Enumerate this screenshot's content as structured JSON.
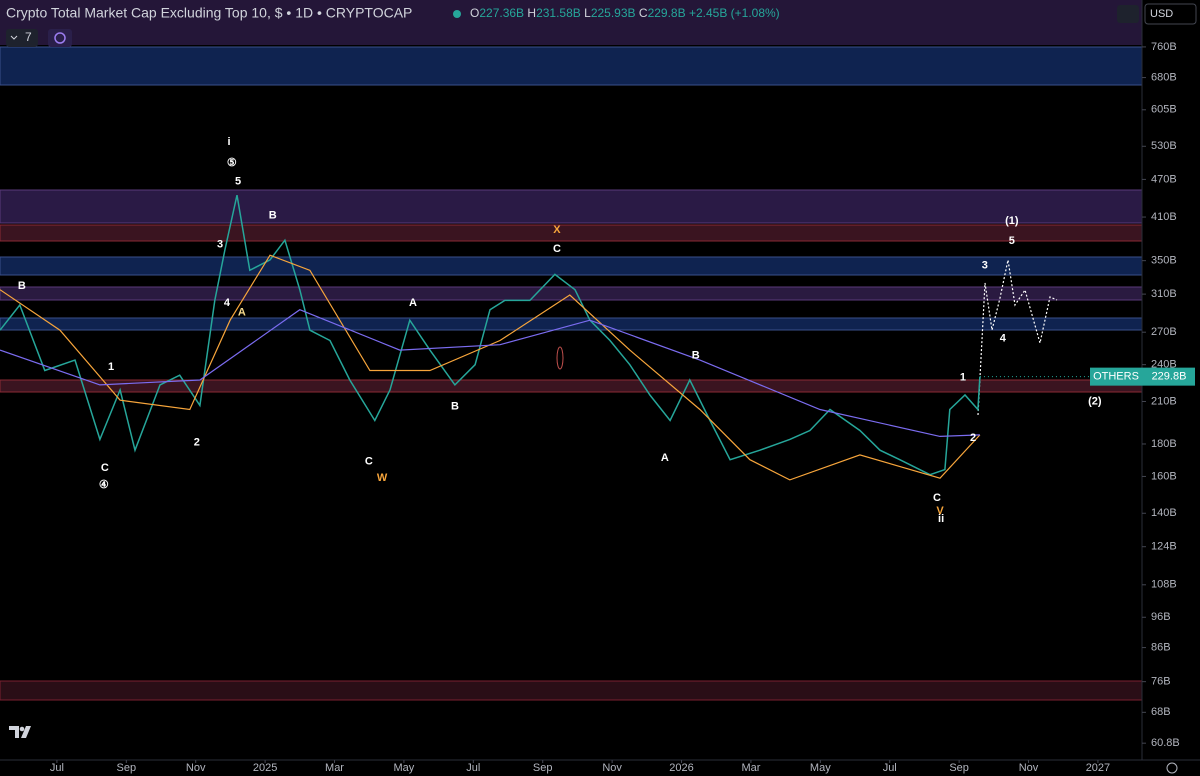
{
  "header": {
    "title": "Crypto Total Market Cap Excluding Top 10, $ • 1D • CRYPTOCAP",
    "ohlc": [
      {
        "label": "O",
        "value": "227.36B"
      },
      {
        "label": "H",
        "value": "231.58B"
      },
      {
        "label": "L",
        "value": "225.93B"
      },
      {
        "label": "C",
        "value": "229.8B"
      }
    ],
    "change": "+2.45B (+1.08%)",
    "indicators": "7",
    "currency": "USD"
  },
  "chart_data": {
    "type": "line",
    "log_scale": true,
    "xlim": [
      -1.64,
      31.27
    ],
    "ylim": [
      57.2,
      901
    ],
    "xticks": [
      {
        "value": 0,
        "label": "Jul"
      },
      {
        "value": 2,
        "label": "Sep"
      },
      {
        "value": 4,
        "label": "Nov"
      },
      {
        "value": 6,
        "label": "2025"
      },
      {
        "value": 8,
        "label": "Mar"
      },
      {
        "value": 10,
        "label": "May"
      },
      {
        "value": 12,
        "label": "Jul"
      },
      {
        "value": 14,
        "label": "Sep"
      },
      {
        "value": 16,
        "label": "Nov"
      },
      {
        "value": 18,
        "label": "2026"
      },
      {
        "value": 20,
        "label": "Mar"
      },
      {
        "value": 22,
        "label": "May"
      },
      {
        "value": 24,
        "label": "Jul"
      },
      {
        "value": 26,
        "label": "Sep"
      },
      {
        "value": 28,
        "label": "Nov"
      },
      {
        "value": 30,
        "label": "2027"
      }
    ],
    "yticks": [
      {
        "value": 760,
        "label": "760B"
      },
      {
        "value": 680,
        "label": "680B"
      },
      {
        "value": 605,
        "label": "605B"
      },
      {
        "value": 530,
        "label": "530B"
      },
      {
        "value": 470,
        "label": "470B"
      },
      {
        "value": 410,
        "label": "410B"
      },
      {
        "value": 350,
        "label": "350B"
      },
      {
        "value": 310,
        "label": "310B"
      },
      {
        "value": 270,
        "label": "270B"
      },
      {
        "value": 240,
        "label": "240B"
      },
      {
        "value": 210,
        "label": "210B"
      },
      {
        "value": 180,
        "label": "180B"
      },
      {
        "value": 160,
        "label": "160B"
      },
      {
        "value": 140,
        "label": "140B"
      },
      {
        "value": 124,
        "label": "124B"
      },
      {
        "value": 108,
        "label": "108B"
      },
      {
        "value": 96,
        "label": "96B"
      },
      {
        "value": 86,
        "label": "86B"
      },
      {
        "value": 76,
        "label": "76B"
      },
      {
        "value": 68,
        "label": "68B"
      },
      {
        "value": 60.8,
        "label": "60.8B"
      }
    ],
    "series": [
      {
        "color": "#26a69a",
        "x": [
          -1.64,
          -1.07,
          -0.35,
          0.52,
          1.24,
          1.82,
          2.25,
          2.97,
          3.54,
          4.12,
          4.55,
          4.84,
          5.19,
          5.56,
          6.14,
          6.57,
          7.0,
          7.29,
          7.87,
          8.44,
          9.16,
          9.6,
          10.17,
          10.75,
          11.47,
          12.05,
          12.48,
          12.91,
          13.63,
          14.35,
          14.93,
          15.36,
          15.94,
          16.51,
          17.09,
          17.67,
          18.24,
          18.82,
          19.4,
          20.26,
          21.12,
          21.7,
          22.28,
          23.14,
          23.72,
          24.29,
          25.16,
          25.59,
          25.73,
          26.17,
          26.54,
          26.6
        ],
        "values": [
          272,
          298,
          235,
          244,
          183,
          219,
          176,
          223,
          231,
          207,
          303,
          364,
          444,
          338,
          351,
          377,
          315,
          272,
          262,
          227,
          196,
          219,
          282,
          253,
          223,
          240,
          293,
          303,
          303,
          333,
          315,
          282,
          262,
          240,
          215,
          196,
          227,
          196,
          170,
          176,
          183,
          189,
          204,
          189,
          176,
          170,
          161,
          164,
          204,
          215,
          204,
          229.8
        ]
      },
      {
        "color": "#f7a53b",
        "x": [
          -1.64,
          0.09,
          1.82,
          3.83,
          4.99,
          6.14,
          7.29,
          9.02,
          10.75,
          12.77,
          14.78,
          16.51,
          18.53,
          19.97,
          21.12,
          23.14,
          25.45,
          26.6
        ],
        "values": [
          315,
          272,
          211,
          204,
          282,
          357,
          338,
          235,
          235,
          262,
          309,
          253,
          204,
          170,
          158,
          173,
          159,
          186
        ]
      },
      {
        "color": "#7b6cf0",
        "x": [
          -1.64,
          1.24,
          4.12,
          7.0,
          9.88,
          12.77,
          15.36,
          18.53,
          21.99,
          25.45,
          26.6
        ],
        "values": [
          253,
          223,
          227,
          293,
          253,
          258,
          282,
          244,
          204,
          185,
          186
        ]
      }
    ],
    "last_label": {
      "name": "OTHERS",
      "value": "229.8B"
    },
    "annotations": [
      {
        "text": "B",
        "x": -1.01,
        "y": 319,
        "color": "#ffffff"
      },
      {
        "text": "1",
        "x": 1.56,
        "y": 238,
        "color": "#ffffff"
      },
      {
        "text": "C",
        "x": 1.38,
        "y": 165,
        "color": "#ffffff"
      },
      {
        "text": "④",
        "x": 1.35,
        "y": 155,
        "color": "#ffffff"
      },
      {
        "text": "2",
        "x": 4.03,
        "y": 181,
        "color": "#ffffff"
      },
      {
        "text": "3",
        "x": 4.7,
        "y": 371,
        "color": "#ffffff"
      },
      {
        "text": "4",
        "x": 4.9,
        "y": 300,
        "color": "#ffffff"
      },
      {
        "text": "A",
        "x": 5.33,
        "y": 290,
        "color": "#f5d98b"
      },
      {
        "text": "5",
        "x": 5.22,
        "y": 466,
        "color": "#ffffff"
      },
      {
        "text": "⑤",
        "x": 5.04,
        "y": 499,
        "color": "#ffffff"
      },
      {
        "text": "i",
        "x": 4.96,
        "y": 538,
        "color": "#ffffff"
      },
      {
        "text": "B",
        "x": 6.22,
        "y": 412,
        "color": "#ffffff"
      },
      {
        "text": "C",
        "x": 8.99,
        "y": 169,
        "color": "#ffffff"
      },
      {
        "text": "W",
        "x": 9.37,
        "y": 159,
        "color": "#f7a53b"
      },
      {
        "text": "A",
        "x": 10.26,
        "y": 300,
        "color": "#ffffff"
      },
      {
        "text": "B",
        "x": 11.47,
        "y": 206,
        "color": "#ffffff"
      },
      {
        "text": "X",
        "x": 14.41,
        "y": 391,
        "color": "#f7a53b"
      },
      {
        "text": "C",
        "x": 14.41,
        "y": 365,
        "color": "#ffffff"
      },
      {
        "text": "B",
        "x": 18.41,
        "y": 248,
        "color": "#ffffff"
      },
      {
        "text": "A",
        "x": 17.52,
        "y": 171,
        "color": "#ffffff"
      },
      {
        "text": "C",
        "x": 25.36,
        "y": 148,
        "color": "#ffffff"
      },
      {
        "text": "V",
        "x": 25.45,
        "y": 141,
        "color": "#f7a53b"
      },
      {
        "text": "ii",
        "x": 25.48,
        "y": 137,
        "color": "#ffffff"
      },
      {
        "text": "1",
        "x": 26.11,
        "y": 229,
        "color": "#ffffff"
      },
      {
        "text": "2",
        "x": 26.4,
        "y": 184,
        "color": "#ffffff"
      },
      {
        "text": "3",
        "x": 26.74,
        "y": 344,
        "color": "#ffffff"
      },
      {
        "text": "4",
        "x": 27.26,
        "y": 264,
        "color": "#ffffff"
      },
      {
        "text": "5",
        "x": 27.52,
        "y": 376,
        "color": "#ffffff"
      },
      {
        "text": "(1)",
        "x": 27.52,
        "y": 404,
        "color": "#ffffff"
      },
      {
        "text": "(2)",
        "x": 29.91,
        "y": 210,
        "color": "#ffffff"
      }
    ]
  }
}
